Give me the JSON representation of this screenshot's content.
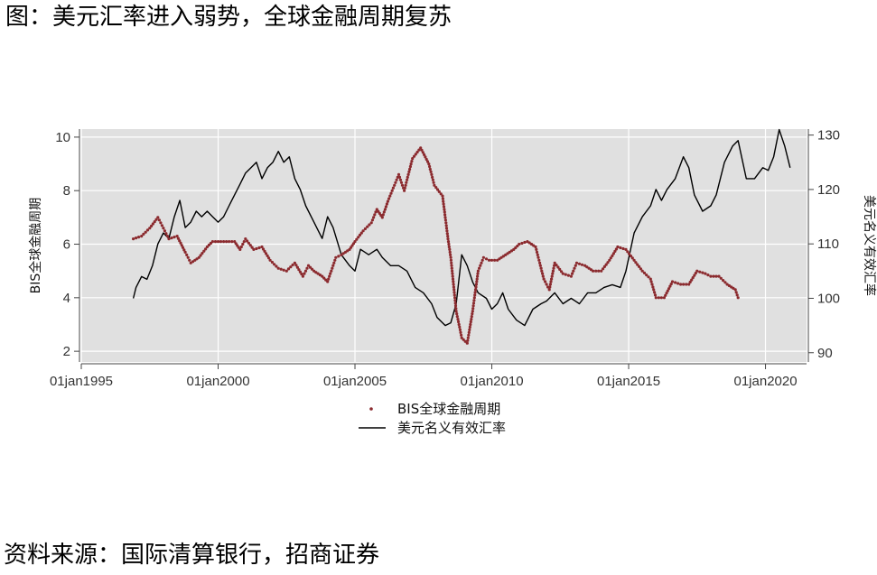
{
  "figure": {
    "title": "图：美元汇率进入弱势，全球金融周期复苏",
    "source": "资料来源：国际清算银行，招商证券"
  },
  "chart_data": {
    "type": "line",
    "x_ticks": [
      "01jan1995",
      "01jan2000",
      "01jan2005",
      "01jan2010",
      "01jan2015",
      "01jan2020"
    ],
    "xlim": [
      1995.0,
      2021.5
    ],
    "y_left": {
      "label": "BIS全球金融周期",
      "ticks": [
        2,
        4,
        6,
        8,
        10
      ],
      "lim": [
        1.6,
        10.3
      ]
    },
    "y_right": {
      "label": "美元名义有效汇率",
      "ticks": [
        90,
        100,
        110,
        120,
        130
      ],
      "lim": [
        88.3,
        131.1
      ]
    },
    "grid": true,
    "legend_position": "bottom",
    "colors": {
      "cycle": "#8b2a2e",
      "usd": "#000000",
      "panel": "#e0e0e0",
      "grid": "#ffffff"
    },
    "series": [
      {
        "name": "BIS全球金融周期",
        "axis": "left",
        "style": "dots",
        "x": [
          1996.9,
          1997.2,
          1997.5,
          1997.8,
          1998.0,
          1998.2,
          1998.5,
          1998.8,
          1999.0,
          1999.3,
          1999.6,
          1999.8,
          2000.1,
          2000.3,
          2000.6,
          2000.8,
          2001.0,
          2001.3,
          2001.6,
          2001.9,
          2002.2,
          2002.5,
          2002.8,
          2003.1,
          2003.3,
          2003.5,
          2003.8,
          2004.0,
          2004.3,
          2004.5,
          2004.8,
          2005.0,
          2005.3,
          2005.6,
          2005.8,
          2006.0,
          2006.2,
          2006.4,
          2006.6,
          2006.8,
          2007.1,
          2007.4,
          2007.7,
          2007.9,
          2008.2,
          2008.4,
          2008.5,
          2008.7,
          2008.9,
          2009.1,
          2009.3,
          2009.5,
          2009.7,
          2009.9,
          2010.2,
          2010.5,
          2010.8,
          2011.0,
          2011.3,
          2011.6,
          2011.9,
          2012.1,
          2012.3,
          2012.6,
          2012.9,
          2013.1,
          2013.4,
          2013.7,
          2014.0,
          2014.3,
          2014.6,
          2014.9,
          2015.2,
          2015.5,
          2015.8,
          2016.0,
          2016.3,
          2016.6,
          2016.9,
          2017.2,
          2017.5,
          2017.8,
          2018.0,
          2018.3,
          2018.6,
          2018.9,
          2019.0
        ],
        "values": [
          6.2,
          6.3,
          6.6,
          7.0,
          6.6,
          6.2,
          6.3,
          5.7,
          5.3,
          5.5,
          5.9,
          6.1,
          6.1,
          6.1,
          6.1,
          5.8,
          6.2,
          5.8,
          5.9,
          5.4,
          5.1,
          5.0,
          5.3,
          4.8,
          5.2,
          5.0,
          4.8,
          4.6,
          5.5,
          5.6,
          5.8,
          6.1,
          6.5,
          6.8,
          7.3,
          7.0,
          7.6,
          8.1,
          8.6,
          8.0,
          9.2,
          9.6,
          9.0,
          8.2,
          7.8,
          6.2,
          5.5,
          3.5,
          2.5,
          2.3,
          3.5,
          5.0,
          5.5,
          5.4,
          5.4,
          5.6,
          5.8,
          6.0,
          6.1,
          5.9,
          4.7,
          4.3,
          5.3,
          4.9,
          4.8,
          5.3,
          5.2,
          5.0,
          5.0,
          5.4,
          5.9,
          5.8,
          5.4,
          5.0,
          4.7,
          4.0,
          4.0,
          4.6,
          4.5,
          4.5,
          5.0,
          4.9,
          4.8,
          4.8,
          4.5,
          4.3,
          4.0
        ]
      },
      {
        "name": "美元名义有效汇率",
        "axis": "right",
        "style": "line",
        "x": [
          1996.9,
          1997.0,
          1997.2,
          1997.4,
          1997.6,
          1997.8,
          1998.0,
          1998.2,
          1998.4,
          1998.6,
          1998.8,
          1999.0,
          1999.2,
          1999.4,
          1999.6,
          1999.8,
          2000.0,
          2000.2,
          2000.4,
          2000.6,
          2000.8,
          2001.0,
          2001.2,
          2001.4,
          2001.6,
          2001.8,
          2002.0,
          2002.2,
          2002.4,
          2002.6,
          2002.8,
          2003.0,
          2003.2,
          2003.5,
          2003.8,
          2004.0,
          2004.2,
          2004.5,
          2004.8,
          2005.0,
          2005.2,
          2005.5,
          2005.8,
          2006.0,
          2006.3,
          2006.6,
          2006.9,
          2007.2,
          2007.5,
          2007.8,
          2008.0,
          2008.3,
          2008.5,
          2008.7,
          2008.9,
          2009.1,
          2009.3,
          2009.5,
          2009.8,
          2010.0,
          2010.2,
          2010.4,
          2010.6,
          2010.9,
          2011.2,
          2011.5,
          2011.8,
          2012.0,
          2012.3,
          2012.6,
          2012.9,
          2013.2,
          2013.5,
          2013.8,
          2014.1,
          2014.4,
          2014.7,
          2014.9,
          2015.2,
          2015.5,
          2015.8,
          2016.0,
          2016.2,
          2016.4,
          2016.7,
          2017.0,
          2017.2,
          2017.4,
          2017.7,
          2018.0,
          2018.2,
          2018.5,
          2018.8,
          2019.0,
          2019.3,
          2019.6,
          2019.9,
          2020.1,
          2020.3,
          2020.5,
          2020.7,
          2020.9
        ],
        "values": [
          100.0,
          102.0,
          104.0,
          103.5,
          106.0,
          110.0,
          112.0,
          111.0,
          115.0,
          118.0,
          113.0,
          114.0,
          116.0,
          115.0,
          116.0,
          115.0,
          114.0,
          115.0,
          117.0,
          119.0,
          121.0,
          123.0,
          124.0,
          125.0,
          122.0,
          124.0,
          125.0,
          127.0,
          125.0,
          126.0,
          122.0,
          120.0,
          117.0,
          114.0,
          111.0,
          115.0,
          113.0,
          108.0,
          106.0,
          105.0,
          109.0,
          108.0,
          109.0,
          107.5,
          106.0,
          106.0,
          105.0,
          102.0,
          101.0,
          99.0,
          96.5,
          95.0,
          95.5,
          99.0,
          108.0,
          106.0,
          103.0,
          101.0,
          100.0,
          98.0,
          99.0,
          101.0,
          98.0,
          96.0,
          95.0,
          98.0,
          99.0,
          99.5,
          101.0,
          99.0,
          100.0,
          99.0,
          101.0,
          101.0,
          102.0,
          102.5,
          102.0,
          105.0,
          112.0,
          115.0,
          117.0,
          120.0,
          118.0,
          120.0,
          122.0,
          126.0,
          124.0,
          119.0,
          116.0,
          117.0,
          119.0,
          125.0,
          128.0,
          129.0,
          122.0,
          122.0,
          124.0,
          123.5,
          126.0,
          131.0,
          128.0,
          124.0
        ]
      }
    ]
  }
}
